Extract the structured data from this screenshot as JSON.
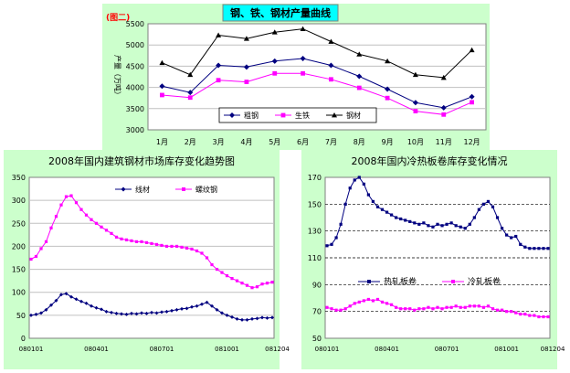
{
  "chart_data": [
    {
      "id": "top",
      "type": "line",
      "title": "钢、铁、钢材产量曲线",
      "tag": "(图二)",
      "ylabel": "产量（万吨）",
      "ylim": [
        3000,
        5500
      ],
      "yticks": [
        3000,
        3500,
        4000,
        4500,
        5000,
        5500
      ],
      "categories": [
        "1月",
        "2月",
        "3月",
        "4月",
        "5月",
        "6月",
        "7月",
        "8月",
        "9月",
        "10月",
        "11月",
        "12月"
      ],
      "legend_position": "bottom-center",
      "grid": "horizontal",
      "series": [
        {
          "name": "粗钢",
          "color": "#000080",
          "marker": "diamond",
          "values": [
            4030,
            3880,
            4520,
            4480,
            4620,
            4680,
            4520,
            4260,
            3960,
            3640,
            3520,
            3780
          ]
        },
        {
          "name": "生铁",
          "color": "#ff00ff",
          "marker": "square",
          "values": [
            3820,
            3760,
            4170,
            4130,
            4330,
            4330,
            4190,
            3990,
            3750,
            3440,
            3360,
            3650
          ]
        },
        {
          "name": "钢材",
          "color": "#000000",
          "marker": "triangle",
          "values": [
            4580,
            4300,
            5230,
            5150,
            5300,
            5380,
            5080,
            4780,
            4620,
            4300,
            4230,
            4880
          ]
        }
      ]
    },
    {
      "id": "left",
      "type": "line",
      "title": "2008年国内建筑钢材市场库存变化趋势图",
      "ylim": [
        0,
        350
      ],
      "yticks": [
        0,
        50,
        100,
        150,
        200,
        250,
        300,
        350
      ],
      "xticks": [
        "080101",
        "080401",
        "080701",
        "081001",
        "081204"
      ],
      "xtick_positions": [
        0,
        13,
        26,
        39,
        49
      ],
      "legend_position": "top-center",
      "grid": "horizontal",
      "series": [
        {
          "name": "线材",
          "color": "#000080",
          "marker": "diamond",
          "values": [
            50,
            52,
            55,
            62,
            72,
            82,
            95,
            97,
            90,
            85,
            80,
            76,
            70,
            66,
            63,
            58,
            56,
            54,
            53,
            52,
            54,
            53,
            55,
            54,
            56,
            55,
            57,
            58,
            60,
            62,
            64,
            65,
            68,
            70,
            74,
            78,
            70,
            62,
            55,
            50,
            46,
            42,
            40,
            40,
            42,
            43,
            45,
            44,
            45
          ]
        },
        {
          "name": "螺纹钢",
          "color": "#ff00ff",
          "marker": "square",
          "values": [
            172,
            178,
            195,
            210,
            240,
            265,
            290,
            308,
            310,
            295,
            280,
            268,
            258,
            250,
            242,
            235,
            228,
            220,
            216,
            214,
            212,
            210,
            210,
            208,
            206,
            204,
            202,
            200,
            200,
            200,
            198,
            196,
            194,
            190,
            185,
            175,
            160,
            150,
            143,
            136,
            130,
            125,
            120,
            115,
            110,
            112,
            118,
            120,
            122
          ]
        }
      ]
    },
    {
      "id": "right",
      "type": "line",
      "title": "2008年国内冷热板卷库存变化情况",
      "ylim": [
        50,
        170
      ],
      "yticks": [
        50,
        70,
        90,
        110,
        130,
        150,
        170
      ],
      "xticks": [
        "080101",
        "080401",
        "080701",
        "081001",
        "081204"
      ],
      "xtick_positions": [
        0,
        13,
        26,
        39,
        49
      ],
      "legend_position": "right",
      "grid": "horizontal",
      "series": [
        {
          "name": "热轧板卷",
          "color": "#000080",
          "marker": "square",
          "values": [
            119,
            120,
            125,
            135,
            150,
            162,
            168,
            170,
            165,
            157,
            152,
            148,
            146,
            144,
            142,
            140,
            139,
            138,
            137,
            136,
            135,
            136,
            134,
            133,
            135,
            134,
            135,
            136,
            134,
            133,
            132,
            135,
            140,
            146,
            150,
            152,
            148,
            140,
            132,
            127,
            125,
            126,
            120,
            118,
            117,
            117,
            117,
            117,
            117
          ]
        },
        {
          "name": "冷轧板卷",
          "color": "#ff00ff",
          "marker": "square",
          "values": [
            73,
            72,
            71,
            71,
            72,
            74,
            76,
            77,
            78,
            79,
            78,
            79,
            77,
            76,
            75,
            73,
            72,
            72,
            72,
            71,
            72,
            72,
            73,
            72,
            73,
            72,
            73,
            73,
            74,
            73,
            73,
            74,
            74,
            74,
            73,
            74,
            72,
            71,
            71,
            70,
            70,
            69,
            68,
            68,
            67,
            67,
            66,
            66,
            66
          ]
        }
      ]
    }
  ]
}
